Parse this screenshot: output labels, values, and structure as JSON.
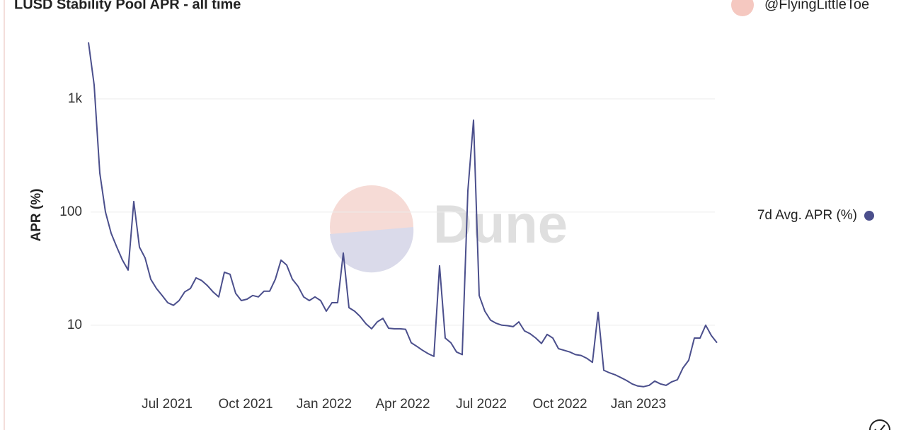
{
  "chart_data": {
    "type": "line",
    "title": "LUSD Stability Pool APR - all time",
    "author": "@FlyingLittleToe",
    "watermark": "Dune",
    "ylabel": "APR (%)",
    "log_y": true,
    "grid": true,
    "legend": "right",
    "xlim": [
      "2021-04",
      "2023-04"
    ],
    "xticks": [
      "Jul 2021",
      "Oct 2021",
      "Jan 2022",
      "Apr 2022",
      "Jul 2022",
      "Oct 2022",
      "Jan 2023"
    ],
    "ylim": [
      2.4,
      3200
    ],
    "yticks": [
      10,
      100,
      {
        "value": 1000,
        "label": "1k"
      }
    ],
    "series": [
      {
        "name": "7d Avg. APR (%)",
        "color": "#4b4f8c",
        "values": [
          3160,
          1330,
          221,
          100,
          65,
          49,
          37.6,
          30.7,
          124,
          49,
          39.3,
          25.5,
          21.1,
          18.3,
          15.8,
          15.0,
          16.5,
          19.7,
          21.1,
          26.2,
          24.8,
          22.4,
          19.7,
          17.8,
          29.4,
          28.2,
          19.1,
          16.5,
          17.0,
          18.3,
          17.8,
          20.0,
          20.0,
          25.5,
          37.6,
          34.0,
          25.5,
          22.1,
          17.8,
          16.5,
          17.8,
          16.5,
          13.3,
          15.8,
          15.8,
          43.4,
          14.3,
          13.3,
          11.9,
          10.3,
          9.3,
          10.7,
          11.5,
          9.4,
          9.3,
          9.3,
          9.2,
          7.0,
          6.5,
          6.0,
          5.6,
          5.3,
          33.5,
          7.7,
          7.0,
          5.8,
          5.5,
          154,
          649,
          18.3,
          13.3,
          11.1,
          10.4,
          10,
          9.9,
          9.7,
          10.7,
          8.9,
          8.4,
          7.7,
          6.9,
          8.3,
          7.7,
          6.2,
          6.0,
          5.8,
          5.5,
          5.4,
          5.1,
          4.7,
          13.0,
          4.0,
          3.8,
          3.65,
          3.45,
          3.25,
          3.03,
          2.9,
          2.86,
          2.94,
          3.21,
          3.03,
          2.94,
          3.16,
          3.3,
          4.2,
          4.9,
          7.7,
          7.7,
          10,
          8.1,
          7.0
        ]
      }
    ]
  }
}
